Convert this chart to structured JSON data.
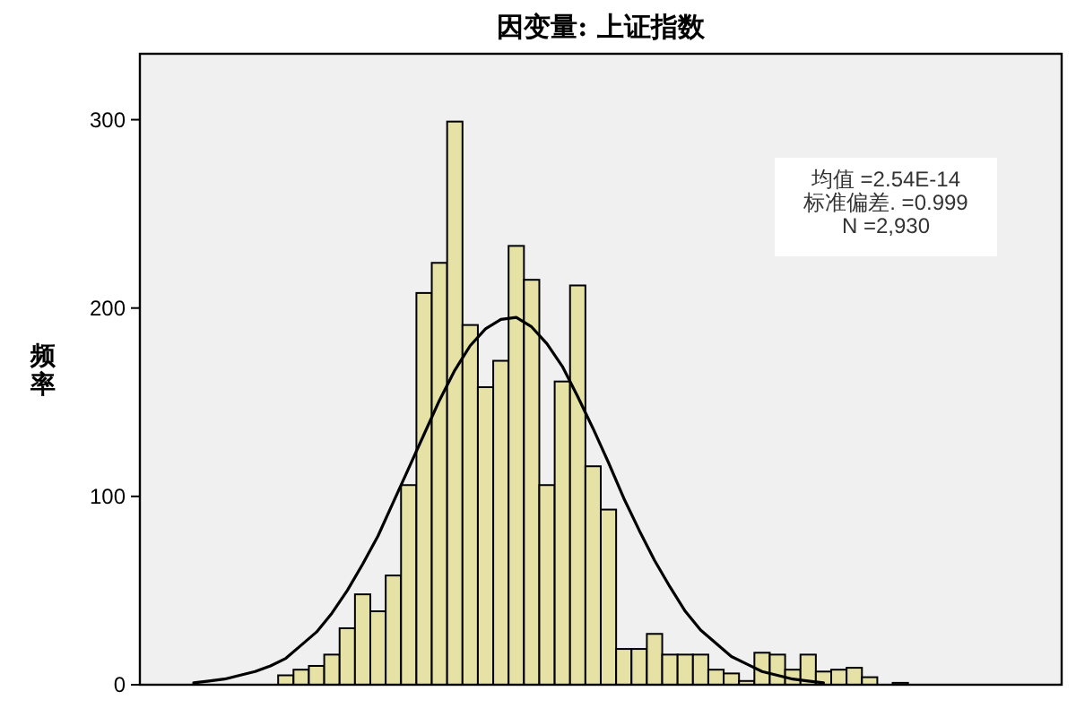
{
  "chart_data": {
    "type": "bar",
    "title": "因变量: 上证指数",
    "ylabel": "频率",
    "categories": [
      null,
      null,
      null,
      null,
      null,
      null,
      null,
      null,
      null,
      null,
      null,
      null,
      null,
      null,
      null,
      null,
      null,
      null,
      null,
      null,
      null,
      null,
      null,
      null,
      null,
      null,
      null,
      null,
      null,
      null,
      null,
      null,
      null,
      null,
      null,
      null,
      null,
      null,
      null,
      null,
      null,
      null,
      null,
      null,
      null,
      null,
      null,
      null,
      null,
      null,
      null,
      null,
      null,
      null,
      null,
      null,
      null,
      null,
      null,
      null
    ],
    "series": [
      {
        "color": "#e6e2a6",
        "values": [
          null,
          null,
          null,
          null,
          null,
          null,
          null,
          null,
          null,
          5,
          8,
          10,
          16,
          30,
          48,
          39,
          58,
          106,
          208,
          224,
          299,
          191,
          158,
          172,
          233,
          215,
          106,
          161,
          212,
          116,
          93,
          19,
          19,
          27,
          16,
          16,
          16,
          8,
          6,
          2,
          17,
          16,
          8,
          16,
          7,
          8,
          9,
          4,
          0,
          1,
          null,
          null,
          null,
          null,
          null,
          null,
          null,
          null,
          null,
          null
        ]
      },
      {
        "type": "line",
        "color": "#000000",
        "values": [
          null,
          null,
          null,
          1,
          2,
          3,
          5,
          7,
          10,
          14,
          21,
          28,
          38,
          50,
          64,
          79,
          97,
          115,
          133,
          151,
          167,
          180,
          189,
          194,
          195,
          190,
          181,
          169,
          153,
          136,
          118,
          99,
          82,
          66,
          52,
          39,
          29,
          22,
          15,
          11,
          7,
          5,
          3,
          2,
          1,
          null,
          null,
          null,
          null,
          null,
          null,
          null,
          null,
          null,
          null,
          null,
          null,
          null,
          null,
          null
        ]
      }
    ],
    "ylim": [
      0,
      335
    ],
    "yticks": [
      0,
      100,
      200,
      300
    ],
    "tick_labels": "y",
    "marker": "none",
    "line_style": "solid",
    "annotations": [
      "均值 =2.54E-14",
      "标准偏差. =0.999",
      "N =2,930"
    ]
  }
}
